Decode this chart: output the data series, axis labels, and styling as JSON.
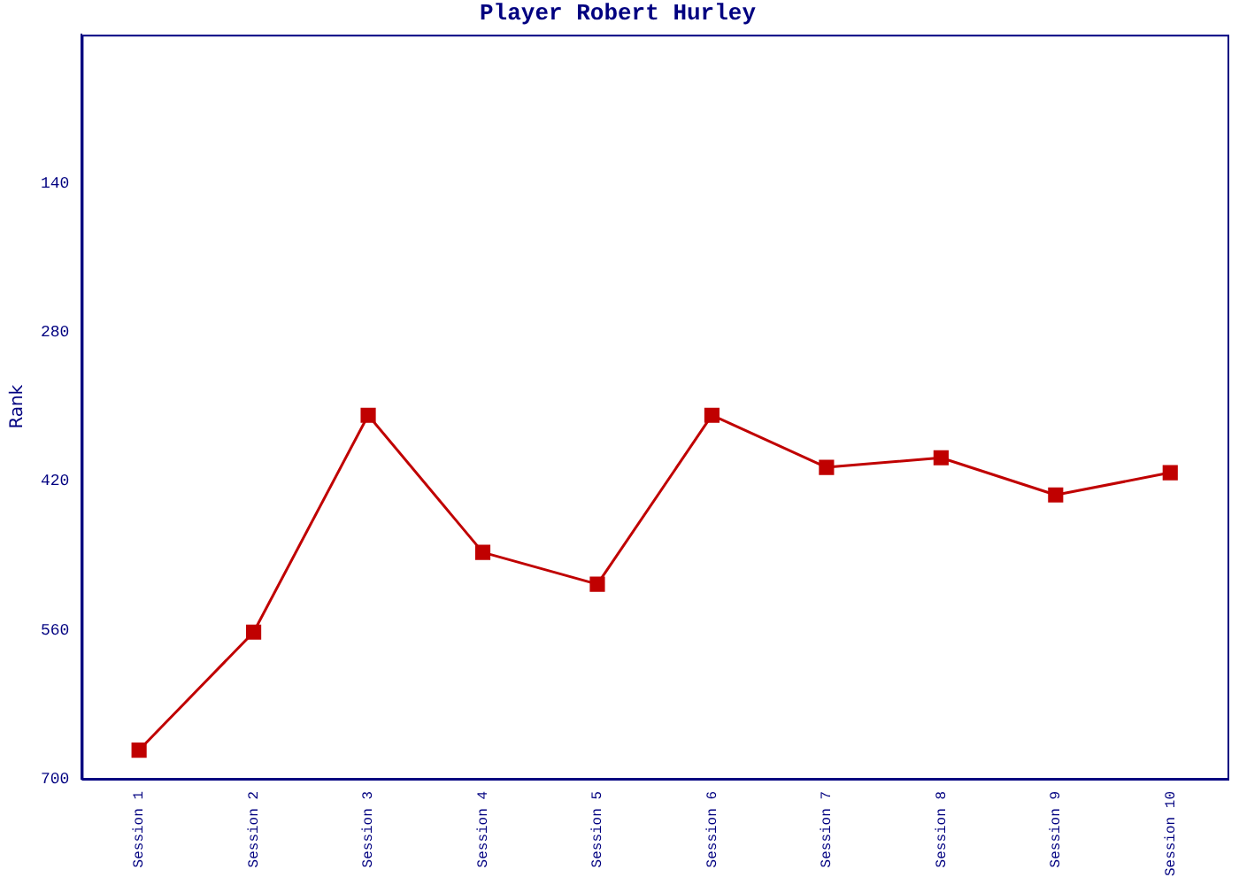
{
  "chart_data": {
    "type": "line",
    "title": "Player Robert Hurley",
    "ylabel": "Rank",
    "categories": [
      "Session 1",
      "Session 2",
      "Session 3",
      "Session 4",
      "Session 5",
      "Session 6",
      "Session 7",
      "Session 8",
      "Session 9",
      "Session 10"
    ],
    "series": [
      {
        "color": "#c00000",
        "values": [
          673,
          562,
          358,
          487,
          517,
          358,
          407,
          398,
          433,
          412
        ]
      }
    ],
    "ylim": [
      700,
      0
    ],
    "yticks": [
      140,
      280,
      420,
      560,
      700
    ],
    "grid": false,
    "legend": false,
    "marker": "square",
    "line_style": "solid"
  }
}
